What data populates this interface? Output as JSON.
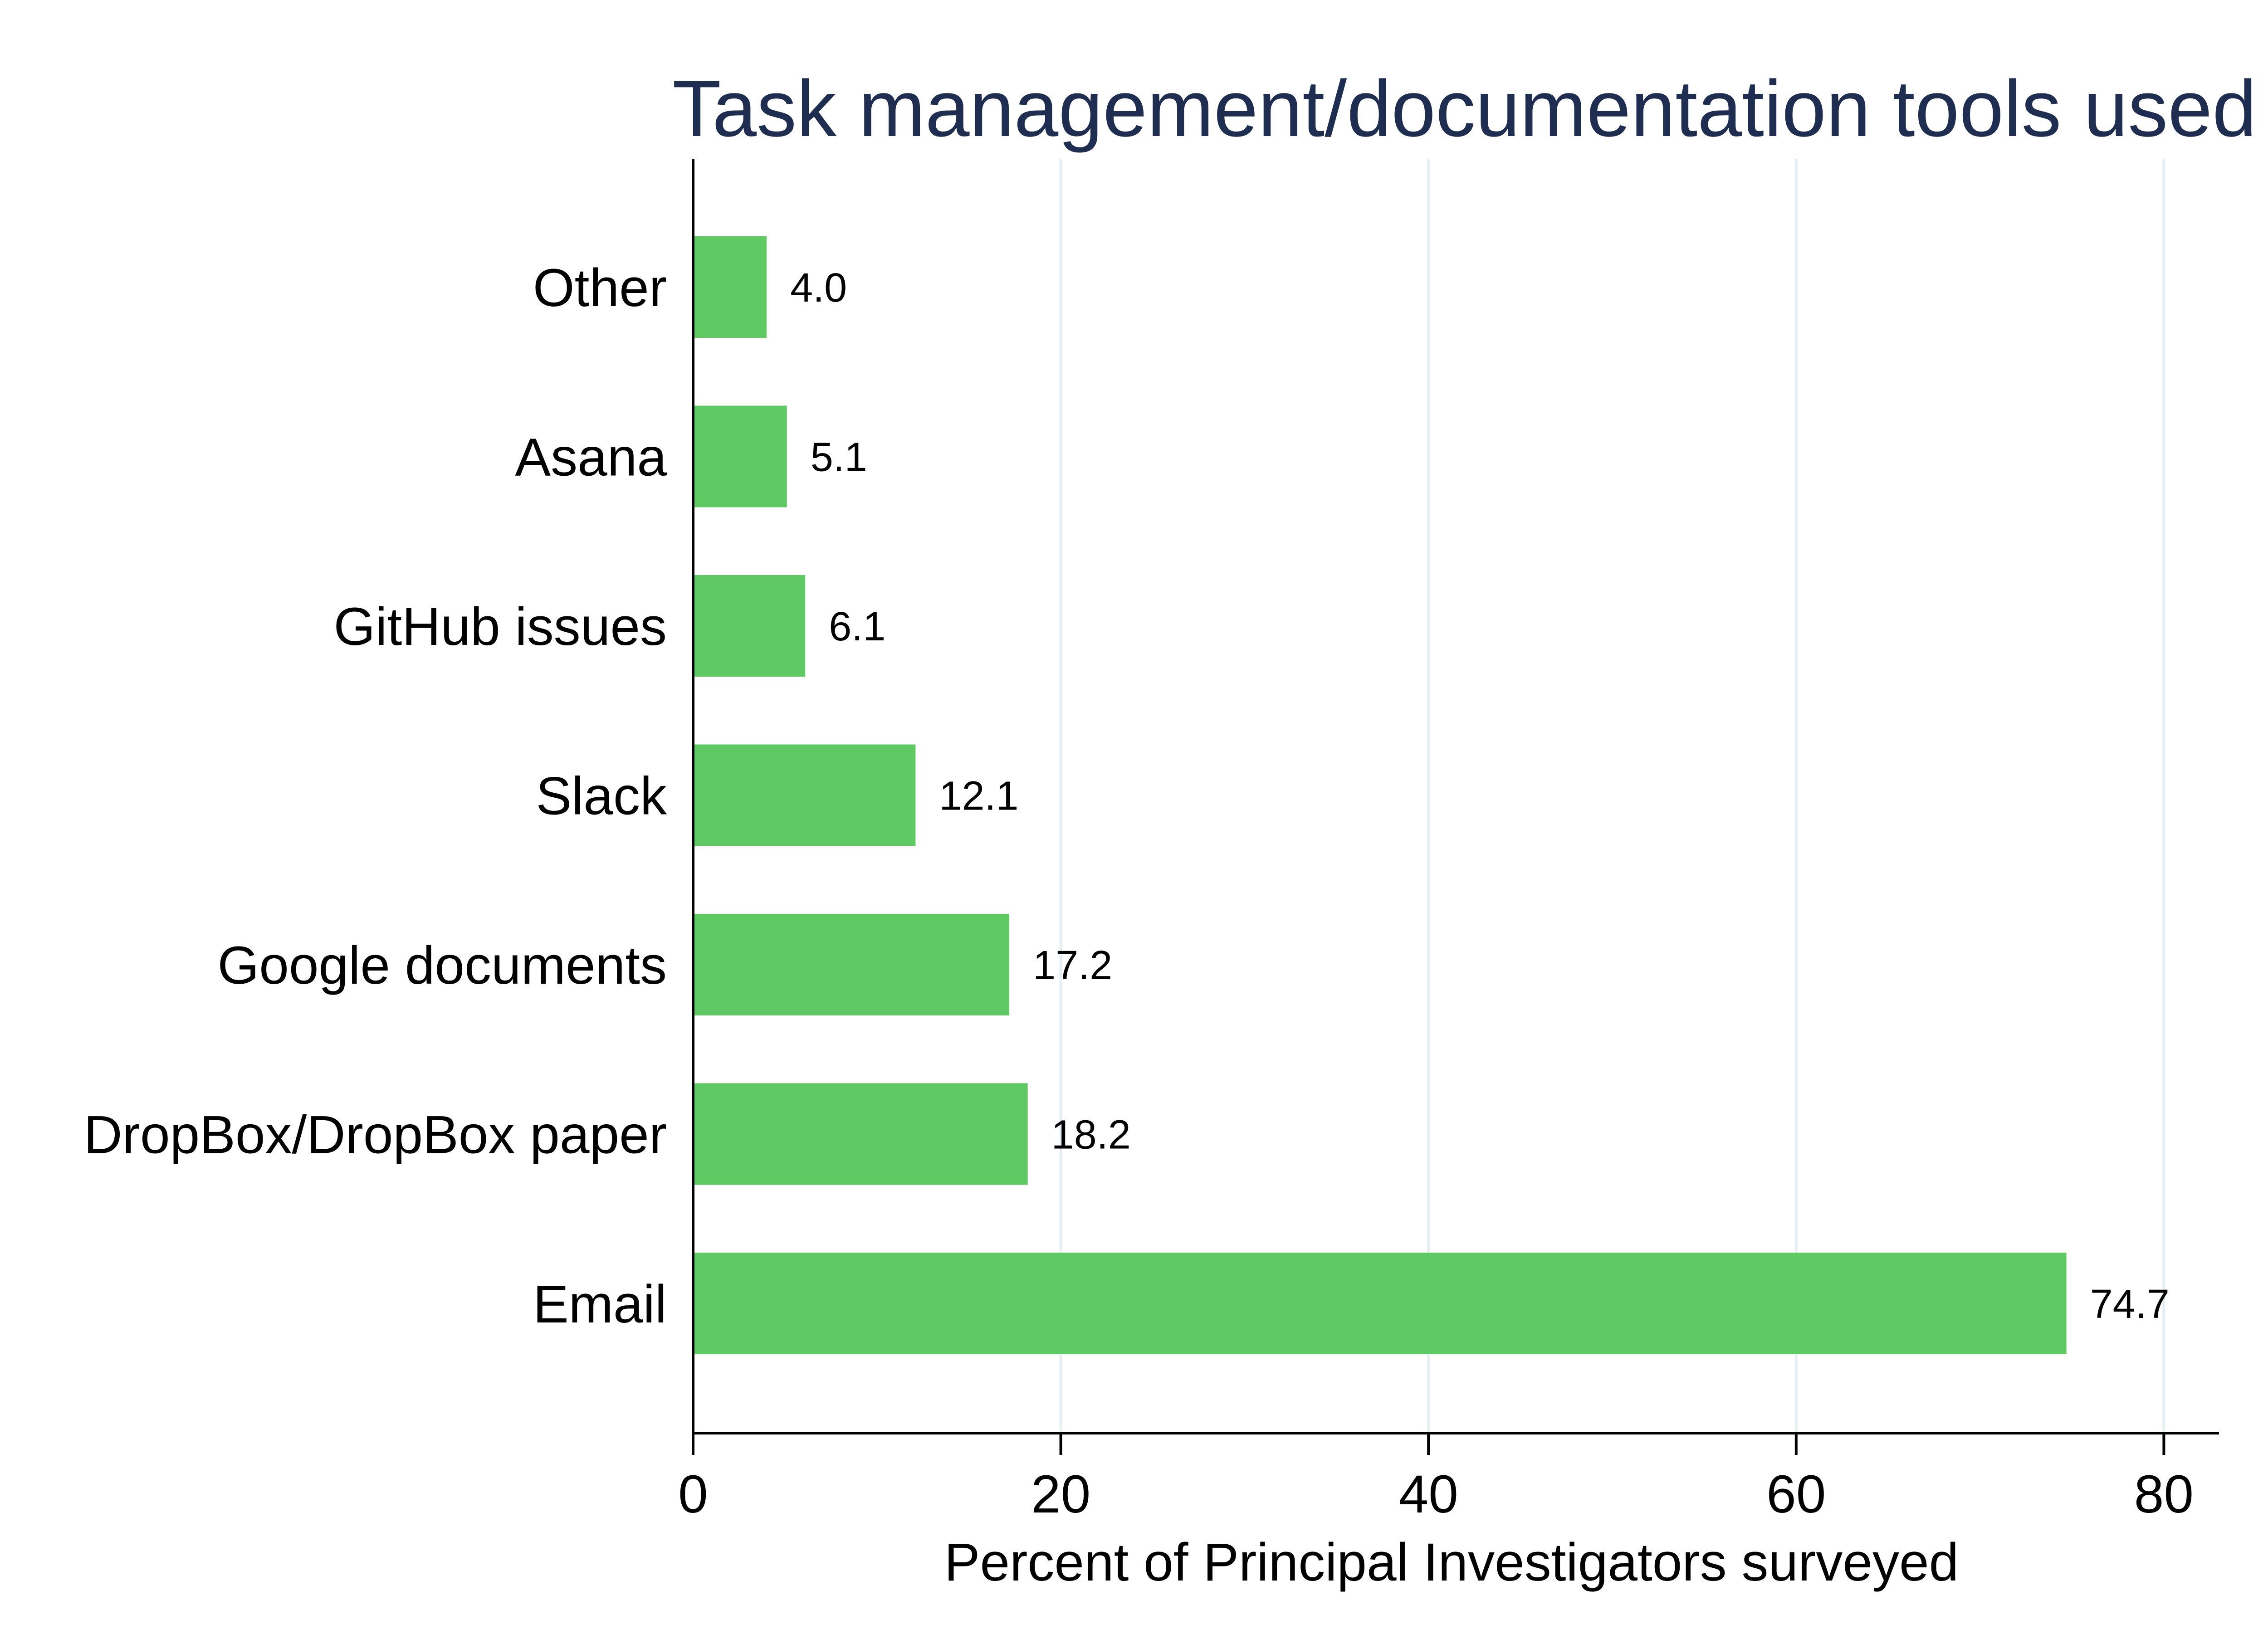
{
  "chart_data": {
    "type": "bar",
    "orientation": "horizontal",
    "title": "Task management/documentation tools used",
    "xlabel": "Percent of Principal Investigators surveyed",
    "ylabel": "",
    "categories": [
      "Other",
      "Asana",
      "GitHub issues",
      "Slack",
      "Google documents",
      "DropBox/DropBox paper",
      "Email"
    ],
    "values": [
      4.0,
      5.1,
      6.1,
      12.1,
      17.2,
      18.2,
      74.7
    ],
    "value_labels": [
      "4.0",
      "5.1",
      "6.1",
      "12.1",
      "17.2",
      "18.2",
      "74.7"
    ],
    "xlim": [
      0,
      83
    ],
    "xticks": [
      0,
      20,
      40,
      60,
      80
    ],
    "xtick_labels": [
      "0",
      "20",
      "40",
      "60",
      "80"
    ],
    "grid": "vertical",
    "legend": "none",
    "colors": {
      "bar": "#5fca64",
      "grid": "#e6eff1",
      "axis": "#000000",
      "title": "#1f2d50"
    }
  }
}
